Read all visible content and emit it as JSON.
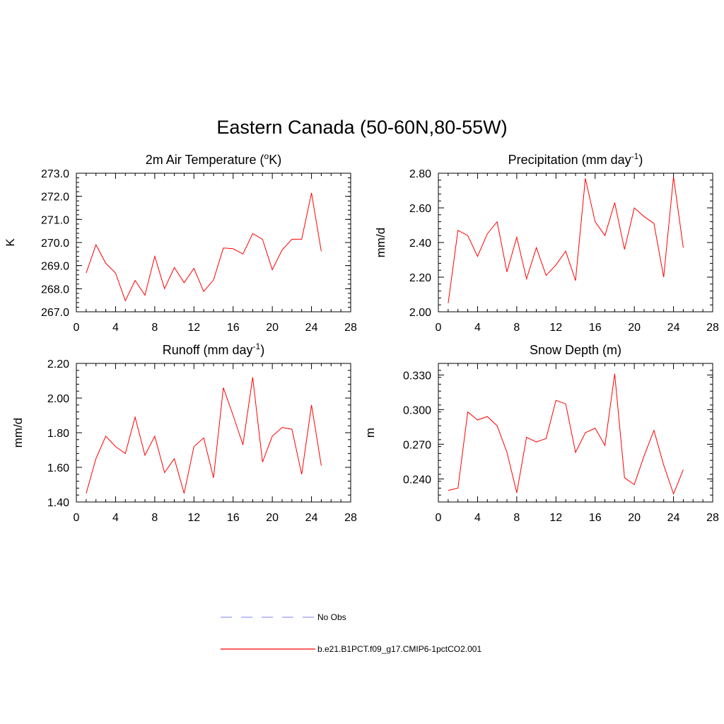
{
  "title": "Eastern Canada (50-60N,80-55W)",
  "colors": {
    "model": "#ff0000",
    "obs": "#9999ff"
  },
  "legend": [
    {
      "label": "No Obs",
      "style": "dashed",
      "color": "#9999ff"
    },
    {
      "label": "b.e21.B1PCT.f09_g17.CMIP6-1pctCO2.001",
      "style": "solid",
      "color": "#ff0000"
    }
  ],
  "chart_data": [
    {
      "type": "line",
      "title_main": "2m Air Temperature (",
      "title_sup": "o",
      "title_end": "K)",
      "ylabel": "K",
      "xlim": [
        0,
        28
      ],
      "ylim": [
        267.0,
        273.0
      ],
      "xticks": [
        0,
        4,
        8,
        12,
        16,
        20,
        24,
        28
      ],
      "yticks": [
        267.0,
        268.0,
        269.0,
        270.0,
        271.0,
        272.0,
        273.0
      ],
      "ytick_labels": [
        "267.0",
        "268.0",
        "269.0",
        "270.0",
        "271.0",
        "272.0",
        "273.0"
      ],
      "series": [
        {
          "x": [
            1,
            2,
            3,
            4,
            5,
            6,
            7,
            8,
            9,
            10,
            11,
            12,
            13,
            14,
            15,
            16,
            17,
            18,
            19,
            20,
            21,
            22,
            23,
            24,
            25
          ],
          "y": [
            268.68,
            269.9,
            269.1,
            268.68,
            267.48,
            268.36,
            267.72,
            269.4,
            268.0,
            268.92,
            268.26,
            268.88,
            267.88,
            268.38,
            269.76,
            269.73,
            269.5,
            270.39,
            270.14,
            268.82,
            269.68,
            270.14,
            270.14,
            272.15,
            269.62
          ]
        }
      ]
    },
    {
      "type": "line",
      "title_main": "Precipitation (mm day",
      "title_sup": "-1",
      "title_end": ")",
      "ylabel": "mm/d",
      "xlim": [
        0,
        28
      ],
      "ylim": [
        2.0,
        2.8
      ],
      "xticks": [
        0,
        4,
        8,
        12,
        16,
        20,
        24,
        28
      ],
      "yticks": [
        2.0,
        2.2,
        2.4,
        2.6,
        2.8
      ],
      "ytick_labels": [
        "2.00",
        "2.20",
        "2.40",
        "2.60",
        "2.80"
      ],
      "series": [
        {
          "x": [
            1,
            2,
            3,
            4,
            5,
            6,
            7,
            8,
            9,
            10,
            11,
            12,
            13,
            14,
            15,
            16,
            17,
            18,
            19,
            20,
            21,
            22,
            23,
            24,
            25
          ],
          "y": [
            2.05,
            2.47,
            2.44,
            2.32,
            2.45,
            2.52,
            2.23,
            2.43,
            2.19,
            2.37,
            2.21,
            2.27,
            2.35,
            2.18,
            2.77,
            2.52,
            2.44,
            2.63,
            2.36,
            2.6,
            2.55,
            2.51,
            2.2,
            2.78,
            2.37
          ]
        }
      ]
    },
    {
      "type": "line",
      "title_main": "Runoff (mm day",
      "title_sup": "-1",
      "title_end": ")",
      "ylabel": "mm/d",
      "xlim": [
        0,
        28
      ],
      "ylim": [
        1.4,
        2.2
      ],
      "xticks": [
        0,
        4,
        8,
        12,
        16,
        20,
        24,
        28
      ],
      "yticks": [
        1.4,
        1.6,
        1.8,
        2.0,
        2.2
      ],
      "ytick_labels": [
        "1.40",
        "1.60",
        "1.80",
        "2.00",
        "2.20"
      ],
      "series": [
        {
          "x": [
            1,
            2,
            3,
            4,
            5,
            6,
            7,
            8,
            9,
            10,
            11,
            12,
            13,
            14,
            15,
            16,
            17,
            18,
            19,
            20,
            21,
            22,
            23,
            24,
            25
          ],
          "y": [
            1.45,
            1.65,
            1.78,
            1.72,
            1.68,
            1.89,
            1.67,
            1.78,
            1.57,
            1.65,
            1.45,
            1.72,
            1.77,
            1.54,
            2.06,
            1.9,
            1.73,
            2.12,
            1.63,
            1.78,
            1.83,
            1.82,
            1.56,
            1.96,
            1.61
          ]
        }
      ]
    },
    {
      "type": "line",
      "title_main": "Snow Depth (m)",
      "title_sup": "",
      "title_end": "",
      "ylabel": "m",
      "xlim": [
        0,
        28
      ],
      "ylim": [
        0.22,
        0.34
      ],
      "xticks": [
        0,
        4,
        8,
        12,
        16,
        20,
        24,
        28
      ],
      "yticks": [
        0.24,
        0.27,
        0.3,
        0.33
      ],
      "ytick_labels": [
        "0.240",
        "0.270",
        "0.300",
        "0.330"
      ],
      "series": [
        {
          "x": [
            1,
            2,
            3,
            4,
            5,
            6,
            7,
            8,
            9,
            10,
            11,
            12,
            13,
            14,
            15,
            16,
            17,
            18,
            19,
            20,
            21,
            22,
            23,
            24,
            25
          ],
          "y": [
            0.23,
            0.232,
            0.298,
            0.291,
            0.294,
            0.286,
            0.263,
            0.228,
            0.276,
            0.272,
            0.275,
            0.308,
            0.305,
            0.263,
            0.28,
            0.284,
            0.269,
            0.331,
            0.241,
            0.235,
            0.26,
            0.282,
            0.252,
            0.227,
            0.248
          ]
        }
      ]
    }
  ]
}
